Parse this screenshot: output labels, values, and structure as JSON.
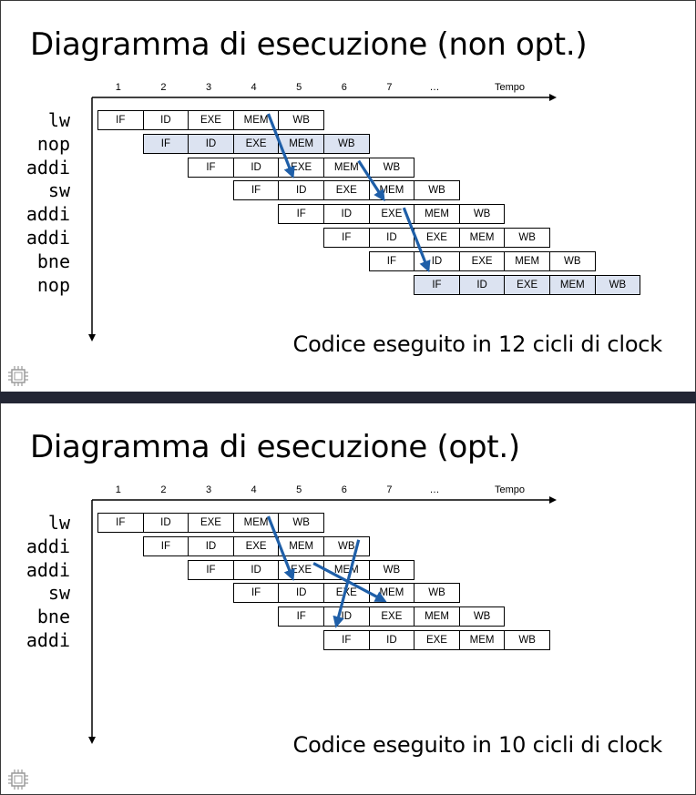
{
  "tempo_label": "Tempo",
  "ticks": [
    "1",
    "2",
    "3",
    "4",
    "5",
    "6",
    "7",
    "…"
  ],
  "slides": [
    {
      "title": "Diagramma di esecuzione (non opt.)",
      "caption": "Codice eseguito in 12 cicli di clock",
      "instructions": [
        {
          "name": "lw",
          "start": 0,
          "highlight": false,
          "stages": [
            "IF",
            "ID",
            "EXE",
            "MEM",
            "WB"
          ]
        },
        {
          "name": "nop",
          "start": 1,
          "highlight": true,
          "stages": [
            "IF",
            "ID",
            "EXE",
            "MEM",
            "WB"
          ]
        },
        {
          "name": "addi",
          "start": 2,
          "highlight": false,
          "stages": [
            "IF",
            "ID",
            "EXE",
            "MEM",
            "WB"
          ]
        },
        {
          "name": "sw",
          "start": 3,
          "highlight": false,
          "stages": [
            "IF",
            "ID",
            "EXE",
            "MEM",
            "WB"
          ]
        },
        {
          "name": "addi",
          "start": 4,
          "highlight": false,
          "stages": [
            "IF",
            "ID",
            "EXE",
            "MEM",
            "WB"
          ]
        },
        {
          "name": "addi",
          "start": 5,
          "highlight": false,
          "stages": [
            "IF",
            "ID",
            "EXE",
            "MEM",
            "WB"
          ]
        },
        {
          "name": "bne",
          "start": 6,
          "highlight": false,
          "stages": [
            "IF",
            "ID",
            "EXE",
            "MEM",
            "WB"
          ]
        },
        {
          "name": "nop",
          "start": 7,
          "highlight": true,
          "stages": [
            "IF",
            "ID",
            "EXE",
            "MEM",
            "WB"
          ]
        }
      ],
      "forwarding": [
        {
          "from": {
            "instr": 0,
            "stage": "MEM"
          },
          "to": {
            "instr": 2,
            "stage": "EXE"
          }
        },
        {
          "from": {
            "instr": 2,
            "stage": "MEM"
          },
          "to": {
            "instr": 3,
            "stage": "MEM"
          }
        },
        {
          "from": {
            "instr": 4,
            "stage": "EXE"
          },
          "to": {
            "instr": 6,
            "stage": "ID"
          }
        }
      ]
    },
    {
      "title": "Diagramma di esecuzione (opt.)",
      "caption": "Codice eseguito in 10 cicli di clock",
      "instructions": [
        {
          "name": "lw",
          "start": 0,
          "highlight": false,
          "stages": [
            "IF",
            "ID",
            "EXE",
            "MEM",
            "WB"
          ]
        },
        {
          "name": "addi",
          "start": 1,
          "highlight": false,
          "stages": [
            "IF",
            "ID",
            "EXE",
            "MEM",
            "WB"
          ]
        },
        {
          "name": "addi",
          "start": 2,
          "highlight": false,
          "stages": [
            "IF",
            "ID",
            "EXE",
            "MEM",
            "WB"
          ]
        },
        {
          "name": "sw",
          "start": 3,
          "highlight": false,
          "stages": [
            "IF",
            "ID",
            "EXE",
            "MEM",
            "WB"
          ]
        },
        {
          "name": "bne",
          "start": 4,
          "highlight": false,
          "stages": [
            "IF",
            "ID",
            "EXE",
            "MEM",
            "WB"
          ]
        },
        {
          "name": "addi",
          "start": 5,
          "highlight": false,
          "stages": [
            "IF",
            "ID",
            "EXE",
            "MEM",
            "WB"
          ]
        }
      ],
      "forwarding": [
        {
          "from": {
            "instr": 0,
            "stage": "MEM"
          },
          "to": {
            "instr": 2,
            "stage": "EXE"
          }
        },
        {
          "from": {
            "instr": 1,
            "stage": "WB"
          },
          "to": {
            "instr": 4,
            "stage": "ID"
          }
        },
        {
          "from": {
            "instr": 2,
            "stage": "EXE"
          },
          "to": {
            "instr": 3,
            "stage": "MEM"
          }
        }
      ]
    }
  ],
  "colors": {
    "arrow": "#1f5fa8",
    "highlight": "#dce3f1",
    "divider": "#232634"
  },
  "icons": {
    "corner": "chip-icon"
  }
}
